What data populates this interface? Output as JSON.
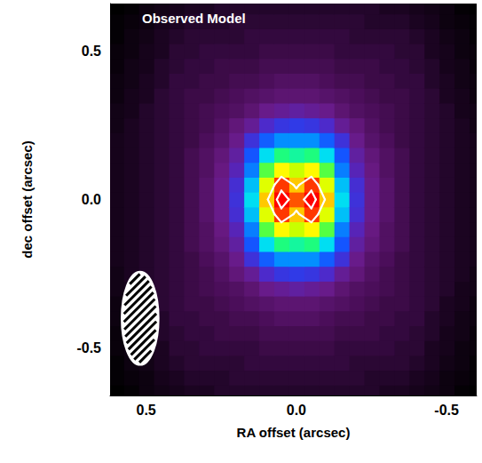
{
  "chart_data": {
    "type": "heatmap",
    "title": "Observed Model",
    "x_label": "RA offset (arcsec)",
    "y_label": "dec offset (arcsec)",
    "x": [
      -0.6,
      -0.55,
      -0.5,
      -0.45,
      -0.4,
      -0.35,
      -0.3,
      -0.25,
      -0.2,
      -0.15,
      -0.1,
      -0.05,
      0,
      0.05,
      0.1,
      0.15,
      0.2,
      0.25,
      0.3,
      0.35,
      0.4,
      0.45,
      0.5,
      0.55,
      0.6
    ],
    "y": [
      -0.65,
      -0.6,
      -0.55,
      -0.5,
      -0.45,
      -0.4,
      -0.35,
      -0.3,
      -0.25,
      -0.2,
      -0.15,
      -0.1,
      -0.05,
      0,
      0.05,
      0.1,
      0.15,
      0.2,
      0.25,
      0.3,
      0.35,
      0.4,
      0.45,
      0.5,
      0.55,
      0.6,
      0.65
    ],
    "z": [
      [
        2,
        3,
        5,
        6,
        7,
        8,
        8,
        9,
        9,
        9,
        9,
        9,
        9,
        9,
        9,
        9,
        9,
        9,
        8,
        8,
        7,
        6,
        5,
        3,
        2
      ],
      [
        3,
        4,
        5,
        7,
        8,
        9,
        9,
        9,
        10,
        10,
        10,
        10,
        10,
        10,
        10,
        10,
        10,
        9,
        9,
        9,
        8,
        7,
        5,
        4,
        3
      ],
      [
        3,
        5,
        6,
        8,
        9,
        10,
        10,
        10,
        10,
        11,
        11,
        11,
        11,
        11,
        11,
        11,
        10,
        10,
        10,
        10,
        9,
        8,
        6,
        5,
        3
      ],
      [
        4,
        5,
        7,
        8,
        10,
        10,
        11,
        11,
        11,
        11,
        12,
        12,
        12,
        12,
        12,
        11,
        11,
        11,
        11,
        10,
        10,
        8,
        7,
        5,
        4
      ],
      [
        4,
        6,
        7,
        9,
        10,
        11,
        11,
        12,
        12,
        12,
        13,
        13,
        13,
        13,
        13,
        12,
        12,
        12,
        11,
        11,
        10,
        9,
        7,
        6,
        4
      ],
      [
        5,
        6,
        8,
        9,
        11,
        11,
        12,
        12,
        13,
        13,
        14,
        15,
        15,
        15,
        14,
        13,
        13,
        12,
        12,
        11,
        11,
        9,
        8,
        6,
        5
      ],
      [
        5,
        7,
        8,
        10,
        11,
        12,
        12,
        13,
        14,
        15,
        16,
        17,
        17,
        17,
        16,
        15,
        14,
        13,
        12,
        12,
        11,
        10,
        8,
        7,
        5
      ],
      [
        6,
        7,
        9,
        10,
        11,
        12,
        13,
        14,
        15,
        17,
        20,
        21,
        22,
        21,
        20,
        17,
        15,
        14,
        13,
        12,
        11,
        10,
        9,
        7,
        6
      ],
      [
        6,
        8,
        9,
        10,
        11,
        12,
        13,
        15,
        18,
        21,
        26,
        29,
        30,
        29,
        26,
        21,
        18,
        15,
        13,
        12,
        11,
        10,
        9,
        8,
        6
      ],
      [
        7,
        8,
        9,
        10,
        11,
        12,
        14,
        16,
        20,
        28,
        36,
        42,
        42,
        42,
        36,
        28,
        20,
        16,
        14,
        12,
        11,
        10,
        9,
        8,
        7
      ],
      [
        7,
        8,
        9,
        10,
        11,
        13,
        15,
        18,
        22,
        35,
        50,
        58,
        56,
        58,
        50,
        35,
        22,
        18,
        15,
        13,
        11,
        10,
        9,
        8,
        7
      ],
      [
        7,
        8,
        9,
        10,
        11,
        13,
        15,
        19,
        24,
        40,
        62,
        75,
        70,
        75,
        62,
        40,
        24,
        19,
        15,
        13,
        11,
        10,
        9,
        8,
        7
      ],
      [
        7,
        8,
        9,
        10,
        11,
        13,
        16,
        20,
        27,
        47,
        72,
        90,
        80,
        90,
        72,
        47,
        27,
        20,
        16,
        13,
        11,
        10,
        9,
        8,
        7
      ],
      [
        7,
        8,
        9,
        10,
        11,
        13,
        16,
        20,
        28,
        50,
        80,
        100,
        88,
        100,
        80,
        50,
        28,
        20,
        16,
        13,
        11,
        10,
        9,
        8,
        7
      ],
      [
        7,
        8,
        9,
        10,
        11,
        13,
        16,
        20,
        27,
        47,
        72,
        90,
        80,
        90,
        72,
        47,
        27,
        20,
        16,
        13,
        11,
        10,
        9,
        8,
        7
      ],
      [
        7,
        8,
        9,
        10,
        11,
        13,
        15,
        19,
        24,
        40,
        62,
        75,
        70,
        75,
        62,
        40,
        24,
        19,
        15,
        13,
        11,
        10,
        9,
        8,
        7
      ],
      [
        7,
        8,
        9,
        10,
        11,
        13,
        15,
        18,
        22,
        35,
        50,
        58,
        56,
        58,
        50,
        35,
        22,
        18,
        15,
        13,
        11,
        10,
        9,
        8,
        7
      ],
      [
        7,
        8,
        9,
        10,
        11,
        12,
        14,
        16,
        20,
        28,
        36,
        42,
        42,
        42,
        36,
        28,
        20,
        16,
        14,
        12,
        11,
        10,
        9,
        8,
        7
      ],
      [
        6,
        8,
        9,
        10,
        11,
        12,
        13,
        15,
        18,
        21,
        26,
        29,
        30,
        29,
        26,
        21,
        18,
        15,
        13,
        12,
        11,
        10,
        9,
        8,
        6
      ],
      [
        6,
        7,
        9,
        10,
        11,
        12,
        13,
        14,
        15,
        17,
        20,
        21,
        22,
        21,
        20,
        17,
        15,
        14,
        13,
        12,
        11,
        10,
        9,
        7,
        6
      ],
      [
        5,
        7,
        8,
        10,
        11,
        12,
        12,
        13,
        14,
        15,
        16,
        17,
        17,
        17,
        16,
        15,
        14,
        13,
        12,
        12,
        11,
        10,
        8,
        7,
        5
      ],
      [
        5,
        6,
        8,
        9,
        11,
        11,
        12,
        12,
        13,
        13,
        14,
        15,
        15,
        15,
        14,
        13,
        13,
        12,
        12,
        11,
        11,
        9,
        8,
        6,
        5
      ],
      [
        4,
        6,
        7,
        9,
        10,
        11,
        11,
        12,
        12,
        12,
        13,
        13,
        13,
        13,
        13,
        12,
        12,
        12,
        11,
        11,
        10,
        9,
        7,
        6,
        4
      ],
      [
        4,
        5,
        7,
        8,
        10,
        10,
        11,
        11,
        11,
        11,
        12,
        12,
        12,
        12,
        12,
        11,
        11,
        11,
        11,
        10,
        10,
        8,
        7,
        5,
        4
      ],
      [
        3,
        5,
        6,
        8,
        9,
        10,
        10,
        10,
        10,
        11,
        11,
        11,
        11,
        11,
        11,
        11,
        10,
        10,
        10,
        10,
        9,
        8,
        6,
        5,
        3
      ],
      [
        3,
        4,
        5,
        7,
        8,
        9,
        9,
        9,
        10,
        10,
        10,
        10,
        10,
        10,
        10,
        10,
        10,
        9,
        9,
        9,
        8,
        7,
        5,
        4,
        3
      ],
      [
        2,
        3,
        5,
        6,
        7,
        8,
        8,
        9,
        9,
        9,
        9,
        9,
        9,
        9,
        9,
        9,
        9,
        9,
        8,
        8,
        7,
        6,
        5,
        3,
        2
      ]
    ],
    "xlim": [
      0.62,
      -0.6
    ],
    "ylim": [
      -0.66,
      0.66
    ],
    "xticks": [
      0.5,
      {
        "value": 0,
        "label": "0.0"
      },
      -0.5
    ],
    "yticks": [
      -0.5,
      {
        "value": 0,
        "label": "0.0"
      },
      0.5
    ],
    "contour_levels": [
      82,
      94
    ],
    "beam": {
      "center": [
        0.52,
        -0.4
      ],
      "size": [
        0.12,
        0.31
      ]
    },
    "grid": false
  }
}
